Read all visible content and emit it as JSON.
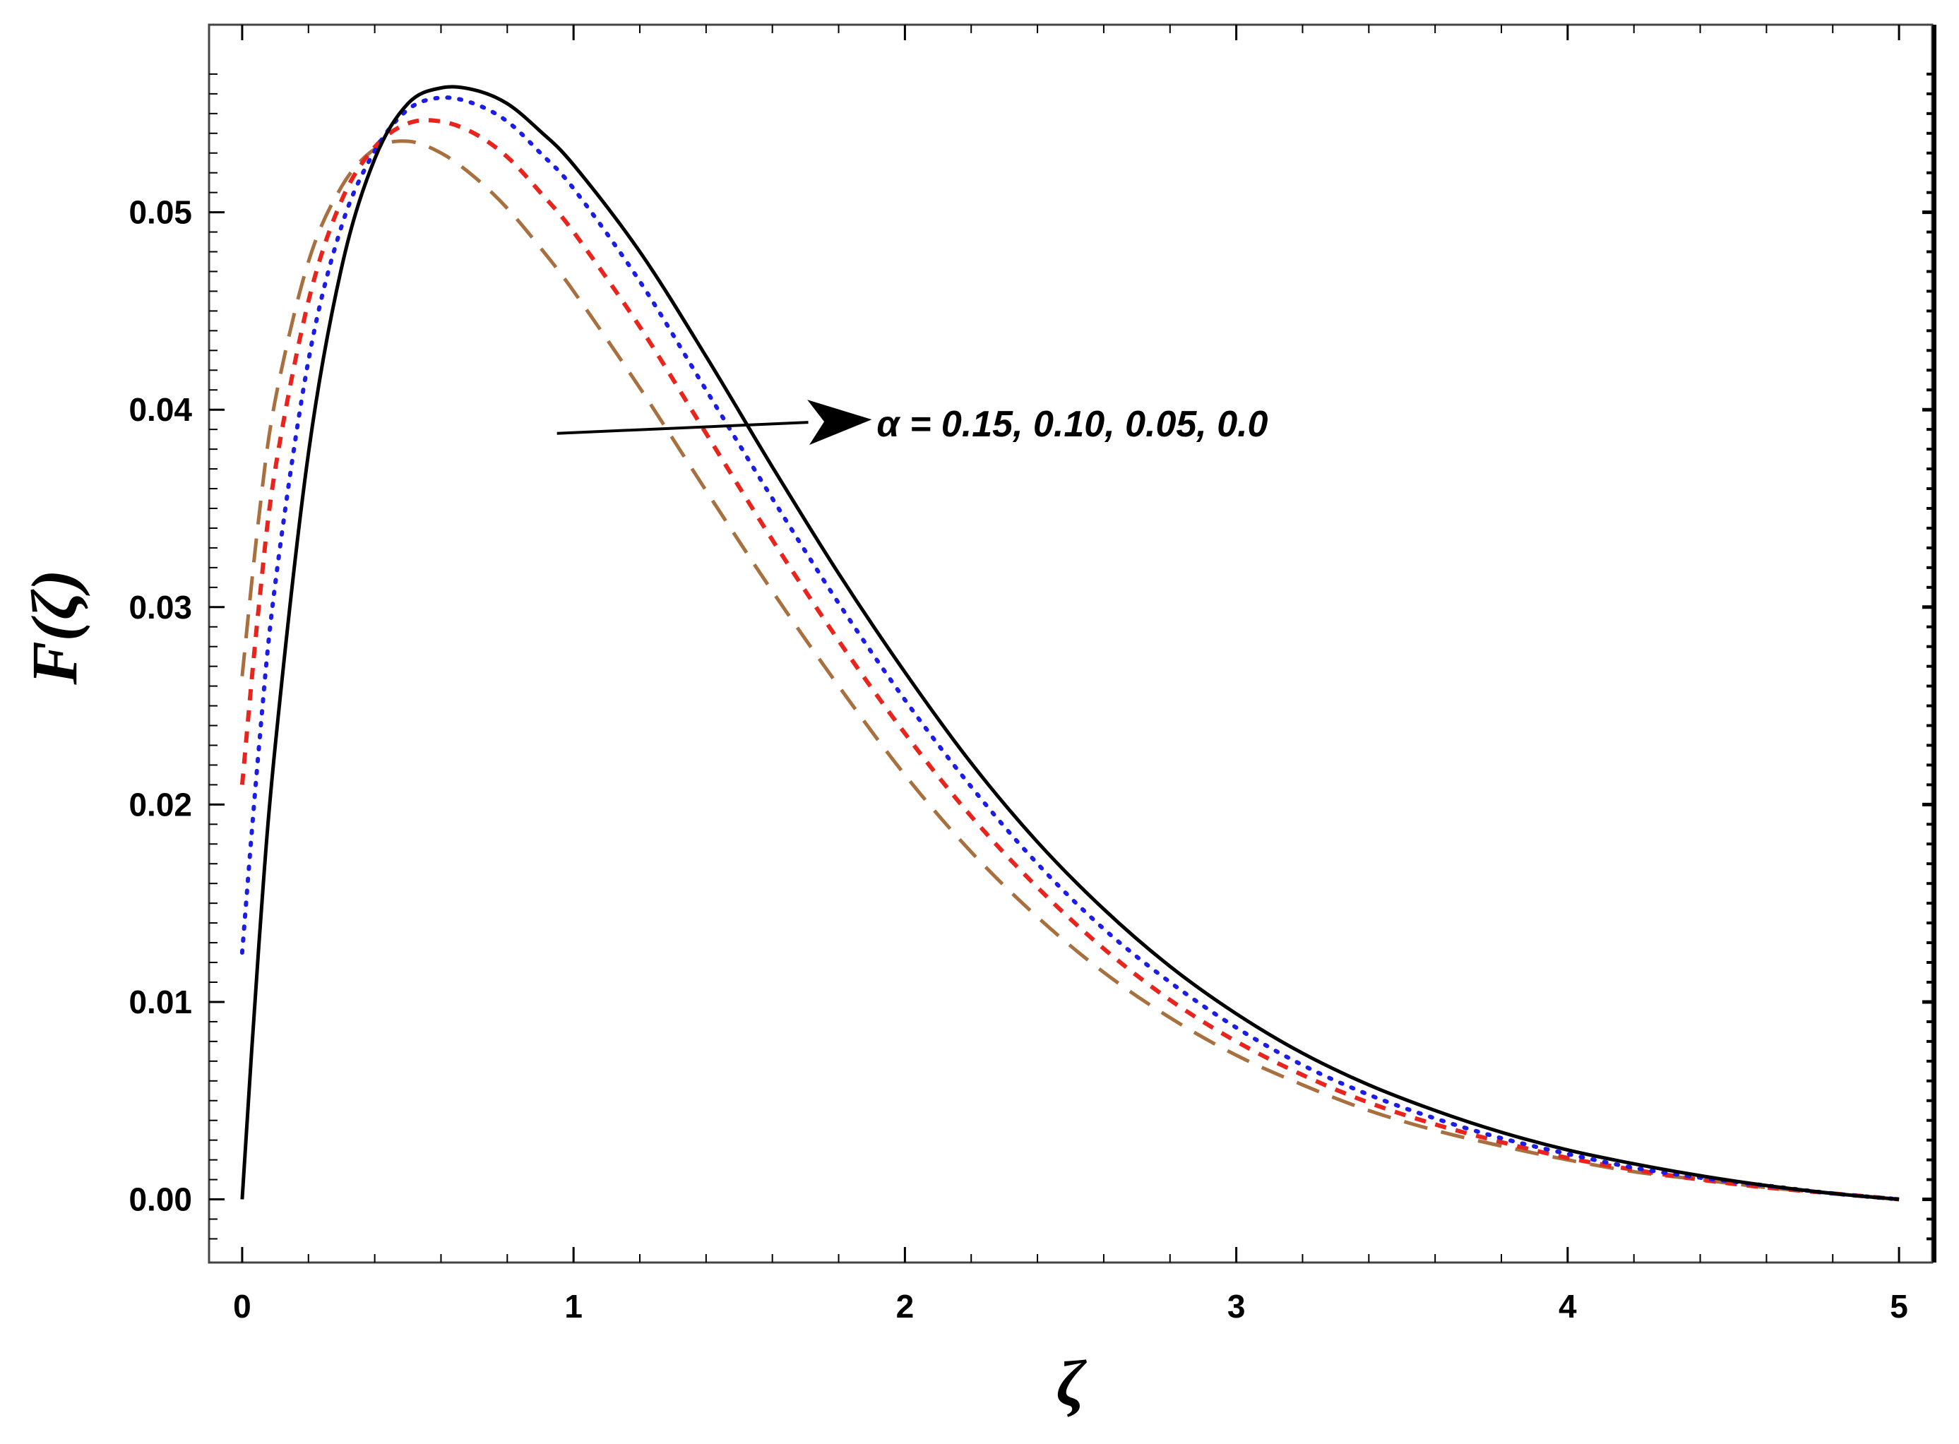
{
  "chart_data": {
    "type": "line",
    "xlabel": "ζ",
    "ylabel": "F(ζ)",
    "xlim": [
      -0.1,
      5.1
    ],
    "ylim": [
      -0.0032,
      0.0595
    ],
    "xticks": [
      0,
      1,
      2,
      3,
      4,
      5
    ],
    "xtick_labels": [
      "0",
      "1",
      "2",
      "3",
      "4",
      "5"
    ],
    "yticks": [
      0.0,
      0.01,
      0.02,
      0.03,
      0.04,
      0.05
    ],
    "ytick_labels": [
      "0.00",
      "0.01",
      "0.02",
      "0.03",
      "0.04",
      "0.05"
    ],
    "grid": false,
    "annotation": {
      "text": "α = 0.15, 0.10, 0.05, 0.0",
      "arrow_from": [
        0.95,
        0.0388
      ],
      "arrow_to": [
        1.9,
        0.0395
      ],
      "text_at": [
        2.0,
        0.0393
      ]
    },
    "series": [
      {
        "style": "dashed-long",
        "color": "#a86f3f",
        "x": [
          0,
          0.05,
          0.1,
          0.2,
          0.3,
          0.4,
          0.5,
          0.6,
          0.7,
          0.8,
          0.9,
          1.0,
          1.2,
          1.4,
          1.6,
          1.8,
          2.0,
          2.2,
          2.4,
          2.6,
          2.8,
          3.0,
          3.2,
          3.4,
          3.6,
          3.8,
          4.0,
          4.2,
          4.4,
          4.6,
          4.8,
          5.0
        ],
        "y": [
          0.0265,
          0.0345,
          0.0405,
          0.0475,
          0.0513,
          0.0532,
          0.0536,
          0.053,
          0.0518,
          0.0502,
          0.0482,
          0.046,
          0.0411,
          0.0359,
          0.0308,
          0.026,
          0.0215,
          0.0176,
          0.0143,
          0.0115,
          0.0092,
          0.0073,
          0.0058,
          0.0045,
          0.0035,
          0.0027,
          0.002,
          0.0014,
          0.001,
          0.0006,
          0.0003,
          0.0
        ]
      },
      {
        "style": "dashed-short",
        "color": "#e8241c",
        "x": [
          0,
          0.05,
          0.1,
          0.2,
          0.3,
          0.4,
          0.5,
          0.6,
          0.7,
          0.8,
          0.9,
          1.0,
          1.2,
          1.4,
          1.6,
          1.8,
          2.0,
          2.2,
          2.4,
          2.6,
          2.8,
          3.0,
          3.2,
          3.4,
          3.6,
          3.8,
          4.0,
          4.2,
          4.4,
          4.6,
          4.8,
          5.0
        ],
        "y": [
          0.021,
          0.03,
          0.037,
          0.0455,
          0.0506,
          0.0533,
          0.0545,
          0.0546,
          0.054,
          0.0528,
          0.051,
          0.049,
          0.0442,
          0.0388,
          0.0334,
          0.0283,
          0.0236,
          0.0194,
          0.0158,
          0.0127,
          0.0101,
          0.008,
          0.0063,
          0.0049,
          0.0038,
          0.0029,
          0.0021,
          0.0015,
          0.001,
          0.0006,
          0.0003,
          0.0
        ]
      },
      {
        "style": "dotted",
        "color": "#1c1ce8",
        "x": [
          0,
          0.05,
          0.1,
          0.2,
          0.3,
          0.4,
          0.5,
          0.6,
          0.7,
          0.8,
          0.9,
          1.0,
          1.2,
          1.4,
          1.6,
          1.8,
          2.0,
          2.2,
          2.4,
          2.6,
          2.8,
          3.0,
          3.2,
          3.4,
          3.6,
          3.8,
          4.0,
          4.2,
          4.4,
          4.6,
          4.8,
          5.0
        ],
        "y": [
          0.0125,
          0.0228,
          0.0312,
          0.0425,
          0.0493,
          0.0531,
          0.0552,
          0.0558,
          0.0555,
          0.0546,
          0.053,
          0.0512,
          0.0465,
          0.041,
          0.0355,
          0.0302,
          0.0253,
          0.0209,
          0.017,
          0.0137,
          0.011,
          0.0087,
          0.0068,
          0.0053,
          0.0041,
          0.0031,
          0.0023,
          0.0016,
          0.0011,
          0.0007,
          0.0003,
          0.0
        ]
      },
      {
        "style": "solid",
        "color": "#000000",
        "x": [
          0,
          0.05,
          0.1,
          0.2,
          0.3,
          0.4,
          0.5,
          0.6,
          0.7,
          0.8,
          0.9,
          1.0,
          1.2,
          1.4,
          1.6,
          1.8,
          2.0,
          2.2,
          2.4,
          2.6,
          2.8,
          3.0,
          3.2,
          3.4,
          3.6,
          3.8,
          4.0,
          4.2,
          4.4,
          4.6,
          4.8,
          5.0
        ],
        "y": [
          0.0,
          0.0128,
          0.023,
          0.0378,
          0.0472,
          0.0527,
          0.0555,
          0.0563,
          0.0562,
          0.0555,
          0.0541,
          0.0524,
          0.048,
          0.0427,
          0.0371,
          0.0317,
          0.0267,
          0.0221,
          0.0181,
          0.0147,
          0.0118,
          0.0094,
          0.0074,
          0.0058,
          0.0045,
          0.0034,
          0.0025,
          0.0018,
          0.0012,
          0.0007,
          0.0003,
          0.0
        ]
      }
    ]
  }
}
